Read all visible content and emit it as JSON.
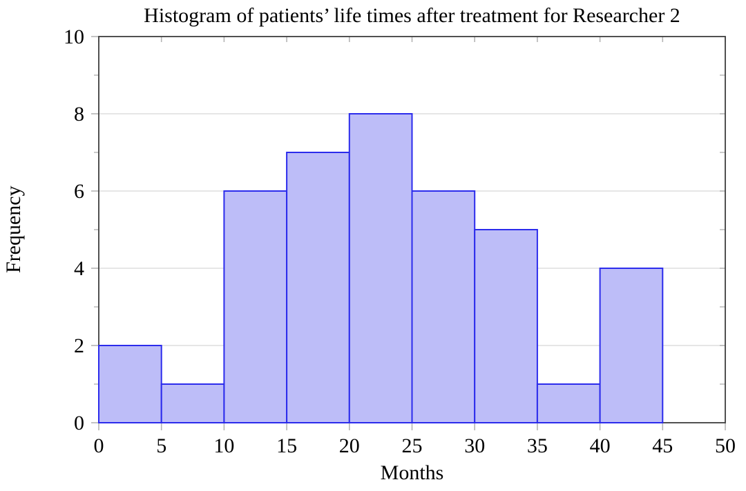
{
  "chart_data": {
    "type": "bar",
    "subtype": "histogram",
    "title": "Histogram of patients’ life times after treatment for Researcher 2",
    "xlabel": "Months",
    "ylabel": "Frequency",
    "bin_edges": [
      0,
      5,
      10,
      15,
      20,
      25,
      30,
      35,
      40,
      45,
      50
    ],
    "frequencies": [
      2,
      1,
      6,
      7,
      8,
      6,
      5,
      1,
      4,
      0
    ],
    "xlim": [
      0,
      50
    ],
    "ylim": [
      0,
      10
    ],
    "x_tick_values": [
      0,
      5,
      10,
      15,
      20,
      25,
      30,
      35,
      40,
      45,
      50
    ],
    "x_tick_labels": [
      "0",
      "5",
      "10",
      "15",
      "20",
      "25",
      "30",
      "35",
      "40",
      "45",
      "50"
    ],
    "y_major_tick_values": [
      0,
      2,
      4,
      6,
      8,
      10
    ],
    "y_major_tick_labels": [
      "0",
      "2",
      "4",
      "6",
      "8",
      "10"
    ],
    "y_minor_tick_values": [
      1,
      3,
      5,
      7,
      9
    ],
    "grid": "horizontal-major",
    "legend_position": "none",
    "colors": {
      "bar_fill": "#bdbdf8",
      "bar_edge": "#2b2bec",
      "gridline": "#d8d8d8",
      "axis_frame": "#3d3d3d",
      "tick_mark": "#b4b4b4",
      "text": "#000000",
      "background": "#ffffff"
    }
  }
}
